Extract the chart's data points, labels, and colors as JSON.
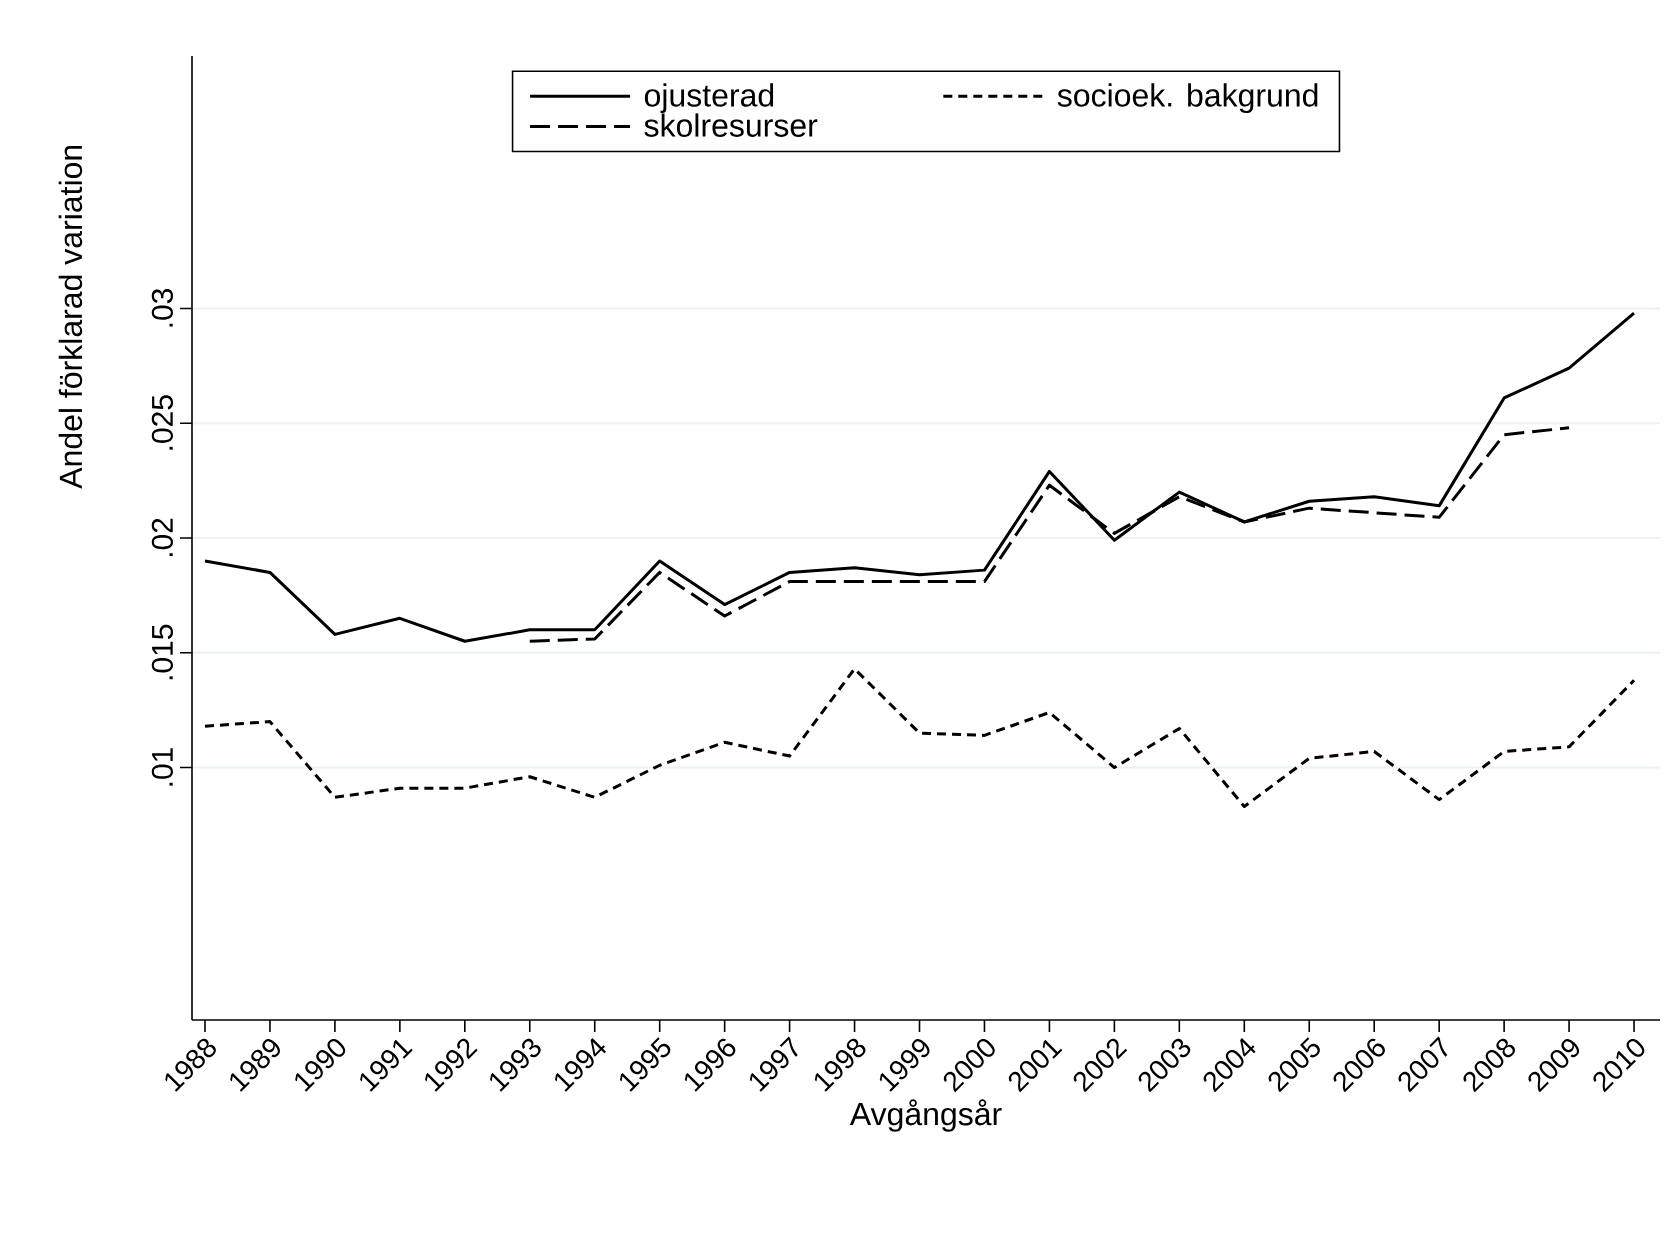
{
  "chart_data": {
    "type": "line",
    "xlabel": "Avgångsår",
    "ylabel": "Andel förklarad variation",
    "x": [
      1988,
      1989,
      1990,
      1991,
      1992,
      1993,
      1994,
      1995,
      1996,
      1997,
      1998,
      1999,
      2000,
      2001,
      2002,
      2003,
      2004,
      2005,
      2006,
      2007,
      2008,
      2009,
      2010
    ],
    "series": [
      {
        "name": "ojusterad",
        "color": "#000000",
        "line_style": "solid",
        "values": [
          0.019,
          0.0185,
          0.0158,
          0.0165,
          0.0155,
          0.016,
          0.016,
          0.019,
          0.0171,
          0.0185,
          0.0187,
          0.0184,
          0.0186,
          0.0229,
          0.0199,
          0.022,
          0.0207,
          0.0216,
          0.0218,
          0.0214,
          0.0261,
          0.0274,
          0.0298
        ]
      },
      {
        "name": "socioek. bakgrund",
        "color": "#000000",
        "line_style": "dotted",
        "values": [
          0.0118,
          0.012,
          0.0087,
          0.0091,
          0.0091,
          0.0096,
          0.0087,
          0.0101,
          0.0111,
          0.0105,
          0.0143,
          0.0115,
          0.0114,
          0.0124,
          0.01,
          0.0117,
          0.0083,
          0.0104,
          0.0107,
          0.0086,
          0.0107,
          0.0109,
          0.0138
        ]
      },
      {
        "name": "skolresurser",
        "color": "#000000",
        "line_style": "dashed",
        "values": [
          null,
          null,
          null,
          null,
          null,
          0.0155,
          0.0156,
          0.0185,
          0.0166,
          0.0181,
          0.0181,
          0.0181,
          0.0181,
          0.0223,
          0.0202,
          0.0218,
          0.0207,
          0.0213,
          0.0211,
          0.0209,
          0.0245,
          0.0248,
          null
        ]
      }
    ],
    "xlim": [
      1987.8,
      2010.4
    ],
    "ylim": [
      -0.001,
      0.041
    ],
    "xticks": [
      1988,
      1989,
      1990,
      1991,
      1992,
      1993,
      1994,
      1995,
      1996,
      1997,
      1998,
      1999,
      2000,
      2001,
      2002,
      2003,
      2004,
      2005,
      2006,
      2007,
      2008,
      2009,
      2010
    ],
    "yticks": [
      {
        "value": 0.01,
        "label": ".01"
      },
      {
        "value": 0.015,
        "label": ".015"
      },
      {
        "value": 0.02,
        "label": ".02"
      },
      {
        "value": 0.025,
        "label": ".025"
      },
      {
        "value": 0.03,
        "label": ".03"
      }
    ],
    "grid": "y",
    "legend": "top"
  }
}
